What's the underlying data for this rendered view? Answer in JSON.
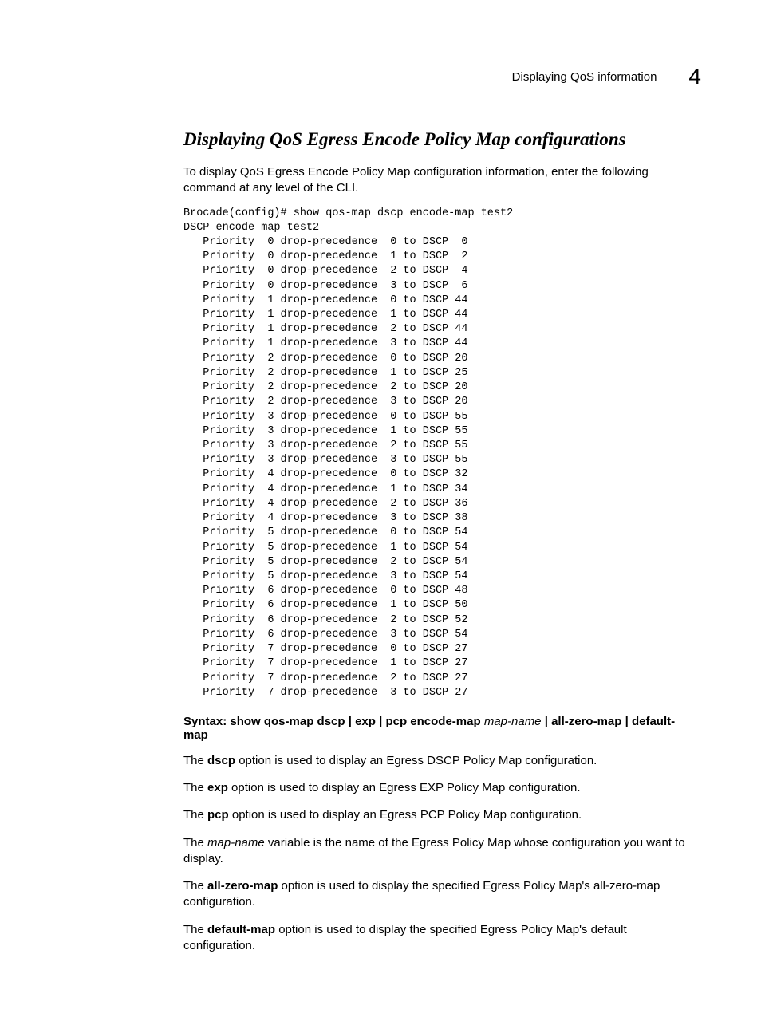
{
  "header": {
    "title": "Displaying QoS information",
    "chapter_number": "4"
  },
  "section": {
    "title": "Displaying QoS Egress Encode Policy Map configurations",
    "intro": "To display QoS Egress Encode Policy Map configuration information, enter the following command at any level of the CLI."
  },
  "cli": {
    "prompt_line": "Brocade(config)# show qos-map dscp encode-map test2",
    "header_line": "DSCP encode map test2",
    "rows": [
      {
        "priority": 0,
        "drop": 0,
        "dscp": 0
      },
      {
        "priority": 0,
        "drop": 1,
        "dscp": 2
      },
      {
        "priority": 0,
        "drop": 2,
        "dscp": 4
      },
      {
        "priority": 0,
        "drop": 3,
        "dscp": 6
      },
      {
        "priority": 1,
        "drop": 0,
        "dscp": 44
      },
      {
        "priority": 1,
        "drop": 1,
        "dscp": 44
      },
      {
        "priority": 1,
        "drop": 2,
        "dscp": 44
      },
      {
        "priority": 1,
        "drop": 3,
        "dscp": 44
      },
      {
        "priority": 2,
        "drop": 0,
        "dscp": 20
      },
      {
        "priority": 2,
        "drop": 1,
        "dscp": 25
      },
      {
        "priority": 2,
        "drop": 2,
        "dscp": 20
      },
      {
        "priority": 2,
        "drop": 3,
        "dscp": 20
      },
      {
        "priority": 3,
        "drop": 0,
        "dscp": 55
      },
      {
        "priority": 3,
        "drop": 1,
        "dscp": 55
      },
      {
        "priority": 3,
        "drop": 2,
        "dscp": 55
      },
      {
        "priority": 3,
        "drop": 3,
        "dscp": 55
      },
      {
        "priority": 4,
        "drop": 0,
        "dscp": 32
      },
      {
        "priority": 4,
        "drop": 1,
        "dscp": 34
      },
      {
        "priority": 4,
        "drop": 2,
        "dscp": 36
      },
      {
        "priority": 4,
        "drop": 3,
        "dscp": 38
      },
      {
        "priority": 5,
        "drop": 0,
        "dscp": 54
      },
      {
        "priority": 5,
        "drop": 1,
        "dscp": 54
      },
      {
        "priority": 5,
        "drop": 2,
        "dscp": 54
      },
      {
        "priority": 5,
        "drop": 3,
        "dscp": 54
      },
      {
        "priority": 6,
        "drop": 0,
        "dscp": 48
      },
      {
        "priority": 6,
        "drop": 1,
        "dscp": 50
      },
      {
        "priority": 6,
        "drop": 2,
        "dscp": 52
      },
      {
        "priority": 6,
        "drop": 3,
        "dscp": 54
      },
      {
        "priority": 7,
        "drop": 0,
        "dscp": 27
      },
      {
        "priority": 7,
        "drop": 1,
        "dscp": 27
      },
      {
        "priority": 7,
        "drop": 2,
        "dscp": 27
      },
      {
        "priority": 7,
        "drop": 3,
        "dscp": 27
      }
    ]
  },
  "syntax": {
    "label": "Syntax:",
    "cmd_a": "show qos-map dscp | exp | pcp encode-map",
    "var_a": "map-name",
    "cmd_b": "| all-zero-map | default-map"
  },
  "paragraphs": {
    "p1_a": "The ",
    "p1_b": "dscp",
    "p1_c": " option is used to display an Egress DSCP Policy Map configuration.",
    "p2_a": "The ",
    "p2_b": "exp",
    "p2_c": " option is used to display an Egress EXP Policy Map configuration.",
    "p3_a": "The ",
    "p3_b": "pcp",
    "p3_c": " option is used to display an Egress PCP Policy Map configuration.",
    "p4_a": "The ",
    "p4_b": "map-name",
    "p4_c": " variable is the name of the Egress Policy Map whose configuration you want to display.",
    "p5_a": "The ",
    "p5_b": "all-zero-map",
    "p5_c": " option is used to display the specified Egress Policy Map's all-zero-map configuration.",
    "p6_a": "The ",
    "p6_b": "default-map",
    "p6_c": " option is used to display the specified Egress Policy Map's default configuration."
  },
  "style": {
    "text_color": "#000000",
    "background_color": "#ffffff",
    "body_font": "Arial, Helvetica, sans-serif",
    "mono_font": "'Courier New', Courier, monospace",
    "title_font": "Georgia, 'Times New Roman', serif",
    "body_fontsize": 15,
    "mono_fontsize": 13.5,
    "title_fontsize": 23,
    "chapter_number_fontsize": 28
  },
  "cli_format": {
    "indent": "   ",
    "priority_label": "Priority",
    "drop_label": "drop-precedence",
    "to_label": "to DSCP",
    "priority_width": 2,
    "drop_width": 2,
    "dscp_width": 2
  }
}
